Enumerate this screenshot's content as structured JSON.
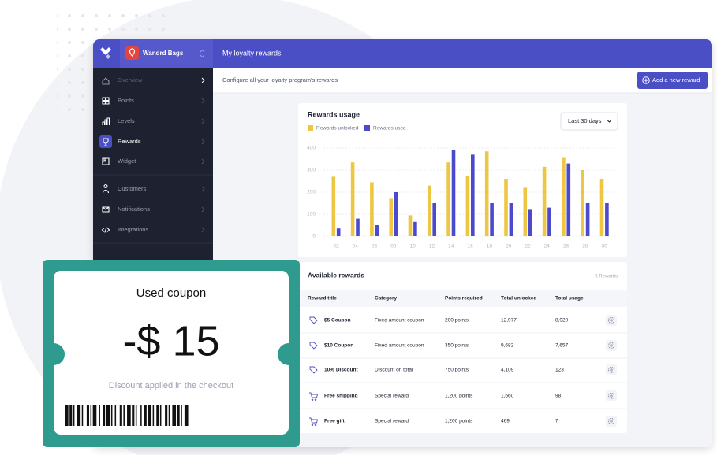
{
  "header": {
    "store": "Wandrd Bags",
    "title": "My loyalty rewards",
    "subtitle": "Configure all your loyalty program's rewards",
    "button": "Add a new reward"
  },
  "sidebar": {
    "items": [
      "Overview",
      "Points",
      "Levels",
      "Rewards",
      "Widget",
      "Customers",
      "Notifications",
      "Integrations"
    ]
  },
  "chart_data": {
    "type": "bar",
    "title": "Rewards usage",
    "filter": "Last 30 days",
    "categories": [
      "02",
      "04",
      "06",
      "08",
      "10",
      "12",
      "14",
      "16",
      "18",
      "20",
      "22",
      "24",
      "26",
      "28",
      "30"
    ],
    "series": [
      {
        "name": "Rewards unlocked",
        "color": "#eec643",
        "values": [
          270,
          335,
          245,
          170,
          95,
          230,
          335,
          275,
          385,
          260,
          220,
          315,
          355,
          300,
          260
        ]
      },
      {
        "name": "Rewards used",
        "color": "#4b4acf",
        "values": [
          35,
          80,
          50,
          200,
          65,
          150,
          390,
          370,
          150,
          150,
          120,
          130,
          330,
          150,
          150
        ]
      }
    ],
    "ylim": [
      0,
      400
    ],
    "yticks": [
      0,
      100,
      200,
      300,
      400
    ],
    "grid": true
  },
  "table": {
    "title": "Available rewards",
    "count": "5 Rewards",
    "columns": [
      "Reward title",
      "Category",
      "Points required",
      "Total unlocked",
      "Total usage"
    ],
    "rows": [
      [
        "$5 Coupon",
        "Fixed amount coupon",
        "200 points",
        "12,977",
        "8,920"
      ],
      [
        "$10 Coupon",
        "Fixed amount coupon",
        "350 points",
        "9,682",
        "7,657"
      ],
      [
        "10% Discount",
        "Discount on total",
        "750 points",
        "4,109",
        "123"
      ],
      [
        "Free shipping",
        "Special reward",
        "1,200 points",
        "1,660",
        "98"
      ],
      [
        "Free gift",
        "Special reward",
        "1,200 points",
        "469",
        "7"
      ]
    ]
  },
  "coupon": {
    "title": "Used coupon",
    "amount": "-$ 15",
    "note": "Discount applied in the checkout"
  }
}
